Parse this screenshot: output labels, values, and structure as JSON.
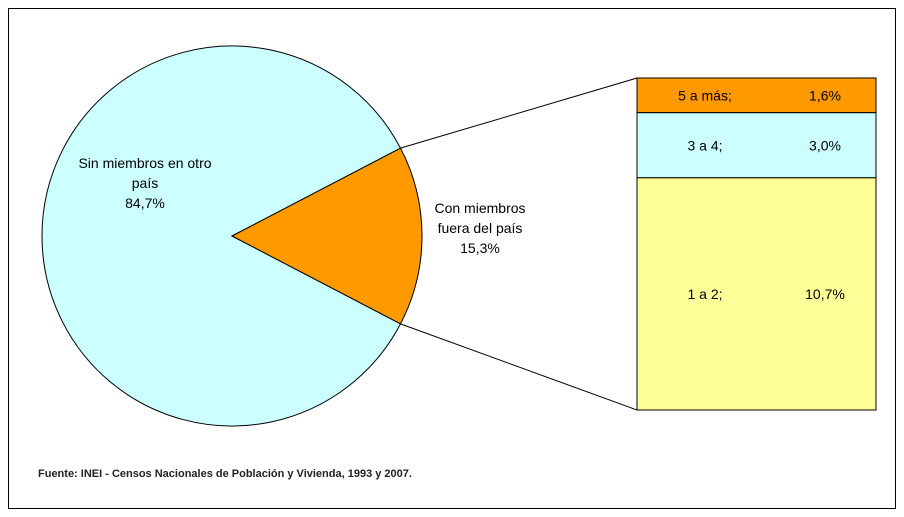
{
  "chart_data": {
    "type": "pie",
    "categories": [
      "Sin miembros en otro país",
      "Con miembros fuera del país"
    ],
    "values": [
      84.7,
      15.3
    ],
    "value_labels": [
      "84,7%",
      "15,3%"
    ],
    "colors": [
      "#ccffff",
      "#ff9900"
    ],
    "breakdown": {
      "type": "bar",
      "categories": [
        "5 a más;",
        "3 a 4;",
        "1 a 2;"
      ],
      "values": [
        1.6,
        3.0,
        10.7
      ],
      "value_labels": [
        "1,6%",
        "3,0%",
        "10,7%"
      ],
      "colors": [
        "#ff9900",
        "#ccffff",
        "#ffff99"
      ]
    },
    "source": "Fuente: INEI - Censos Nacionales de Población y Vivienda, 1993 y 2007."
  }
}
